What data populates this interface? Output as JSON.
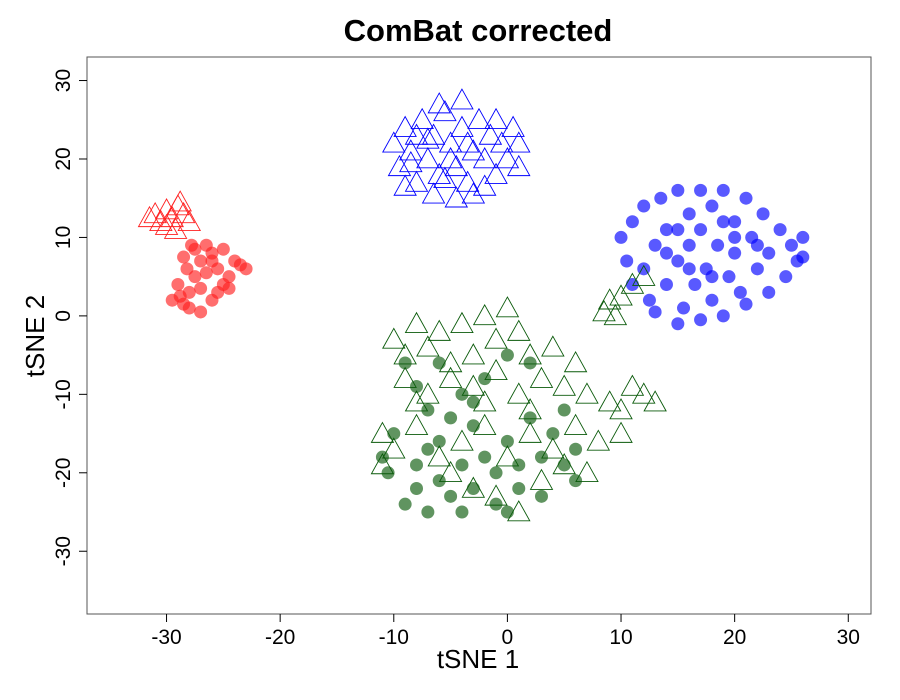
{
  "chart_data": {
    "type": "scatter",
    "title": "ComBat corrected",
    "xlabel": "tSNE 1",
    "ylabel": "tSNE 2",
    "xlim": [
      -37,
      32
    ],
    "ylim": [
      -38,
      33
    ],
    "xticks": [
      -30,
      -20,
      -10,
      0,
      10,
      20,
      30
    ],
    "yticks": [
      -30,
      -20,
      -10,
      0,
      10,
      20,
      30
    ],
    "grid": false,
    "legend": "none",
    "series": [
      {
        "color": "#ff2020",
        "marker": "circle",
        "points": [
          [
            -28.5,
            1.5
          ],
          [
            -28,
            3
          ],
          [
            -27.5,
            5
          ],
          [
            -27,
            7
          ],
          [
            -26.5,
            9
          ],
          [
            -26,
            8
          ],
          [
            -25.5,
            6
          ],
          [
            -25,
            4
          ],
          [
            -24.5,
            5
          ],
          [
            -24,
            7
          ],
          [
            -23.5,
            6.5
          ],
          [
            -23,
            6
          ],
          [
            -29,
            4
          ],
          [
            -28.8,
            2.5
          ],
          [
            -28,
            1
          ],
          [
            -27,
            0.5
          ],
          [
            -26,
            2
          ],
          [
            -25.5,
            3
          ],
          [
            -27.5,
            8.5
          ],
          [
            -26.5,
            5.5
          ],
          [
            -29.5,
            2
          ],
          [
            -28.2,
            6
          ],
          [
            -27.8,
            9
          ],
          [
            -25,
            8.5
          ],
          [
            -24.5,
            3.5
          ],
          [
            -26,
            7
          ],
          [
            -27,
            3.5
          ],
          [
            -28.5,
            7.5
          ]
        ]
      },
      {
        "color": "#ff2020",
        "marker": "triangle",
        "points": [
          [
            -31,
            13
          ],
          [
            -30.5,
            12
          ],
          [
            -30,
            13.5
          ],
          [
            -29.5,
            12.5
          ],
          [
            -29,
            14
          ],
          [
            -28.5,
            13
          ],
          [
            -28,
            12
          ],
          [
            -30,
            11.5
          ],
          [
            -29.2,
            11
          ],
          [
            -28.8,
            14.5
          ],
          [
            -31.5,
            12.5
          ]
        ]
      },
      {
        "color": "#0000ff",
        "marker": "triangle",
        "points": [
          [
            -10,
            22
          ],
          [
            -9.5,
            19
          ],
          [
            -9,
            24
          ],
          [
            -8.5,
            21
          ],
          [
            -8,
            17
          ],
          [
            -7.5,
            25
          ],
          [
            -7,
            20
          ],
          [
            -6.5,
            23
          ],
          [
            -6,
            18
          ],
          [
            -5.5,
            26
          ],
          [
            -5,
            22
          ],
          [
            -4.5,
            19
          ],
          [
            -4,
            24
          ],
          [
            -3.5,
            17
          ],
          [
            -3,
            21
          ],
          [
            -2.5,
            25
          ],
          [
            -2,
            20
          ],
          [
            -1.5,
            23
          ],
          [
            -1,
            18
          ],
          [
            -0.5,
            22
          ],
          [
            0,
            20
          ],
          [
            1,
            22
          ],
          [
            1,
            19
          ],
          [
            -6,
            27
          ],
          [
            -4,
            27.5
          ],
          [
            -3,
            15.5
          ],
          [
            -6.5,
            15.5
          ],
          [
            -9,
            16.5
          ],
          [
            -8,
            23
          ],
          [
            -2,
            16.5
          ],
          [
            0.5,
            24
          ],
          [
            -5,
            20
          ],
          [
            -7,
            22.5
          ],
          [
            -3.5,
            22
          ],
          [
            -5.5,
            17.5
          ],
          [
            -1,
            25
          ],
          [
            -8.5,
            19.5
          ],
          [
            -4.5,
            15
          ]
        ]
      },
      {
        "color": "#0000ff",
        "marker": "circle",
        "points": [
          [
            10,
            10
          ],
          [
            10.5,
            7
          ],
          [
            11,
            4
          ],
          [
            11,
            12
          ],
          [
            12,
            14
          ],
          [
            12,
            6
          ],
          [
            12.5,
            2
          ],
          [
            13,
            9
          ],
          [
            13.5,
            15
          ],
          [
            14,
            4
          ],
          [
            14,
            11
          ],
          [
            15,
            16
          ],
          [
            15,
            7
          ],
          [
            15.5,
            1
          ],
          [
            16,
            13
          ],
          [
            16,
            9
          ],
          [
            16.5,
            4
          ],
          [
            17,
            16
          ],
          [
            17,
            11
          ],
          [
            17.5,
            6
          ],
          [
            18,
            2
          ],
          [
            18,
            14
          ],
          [
            18.5,
            9
          ],
          [
            19,
            16
          ],
          [
            19.5,
            5
          ],
          [
            20,
            12
          ],
          [
            20,
            8
          ],
          [
            20.5,
            3
          ],
          [
            21,
            15
          ],
          [
            21.5,
            10
          ],
          [
            22,
            6
          ],
          [
            22.5,
            13
          ],
          [
            23,
            8
          ],
          [
            23,
            3
          ],
          [
            24,
            11
          ],
          [
            24.5,
            5
          ],
          [
            25,
            9
          ],
          [
            25.5,
            7
          ],
          [
            26,
            10
          ],
          [
            26,
            7.5
          ],
          [
            17,
            -0.5
          ],
          [
            15,
            -1
          ],
          [
            13,
            0.5
          ],
          [
            19,
            0
          ],
          [
            21,
            1.5
          ],
          [
            14,
            8
          ],
          [
            18,
            5
          ],
          [
            20,
            10
          ],
          [
            16,
            6
          ],
          [
            22,
            9
          ],
          [
            19,
            12
          ],
          [
            15,
            11
          ]
        ]
      },
      {
        "color": "#0a5a0a",
        "marker": "triangle",
        "points": [
          [
            9,
            2
          ],
          [
            9.5,
            0
          ],
          [
            10,
            2.5
          ],
          [
            11,
            4
          ],
          [
            12,
            5
          ],
          [
            8.5,
            0.5
          ],
          [
            -10,
            -3
          ],
          [
            -9,
            -5
          ],
          [
            -8,
            -1
          ],
          [
            -7,
            -4
          ],
          [
            -6,
            -2
          ],
          [
            -5,
            -6
          ],
          [
            -4,
            -1
          ],
          [
            -3,
            -5
          ],
          [
            -2,
            0
          ],
          [
            -1,
            -3
          ],
          [
            0,
            1
          ],
          [
            1,
            -2
          ],
          [
            2,
            -5
          ],
          [
            -9,
            -8
          ],
          [
            -7,
            -10
          ],
          [
            -5,
            -8
          ],
          [
            -3,
            -9
          ],
          [
            -1,
            -7
          ],
          [
            1,
            -10
          ],
          [
            3,
            -8
          ],
          [
            5,
            -9
          ],
          [
            7,
            -10
          ],
          [
            9,
            -11
          ],
          [
            11,
            -9
          ],
          [
            12,
            -10
          ],
          [
            13,
            -11
          ],
          [
            -11,
            -15
          ],
          [
            -10,
            -17
          ],
          [
            -8,
            -14
          ],
          [
            -6,
            -18
          ],
          [
            -4,
            -16
          ],
          [
            -2,
            -14
          ],
          [
            0,
            -18
          ],
          [
            2,
            -15
          ],
          [
            4,
            -17
          ],
          [
            6,
            -14
          ],
          [
            8,
            -16
          ],
          [
            10,
            -15
          ],
          [
            -3,
            -22
          ],
          [
            -1,
            -23
          ],
          [
            1,
            -25
          ],
          [
            3,
            -21
          ],
          [
            5,
            -19
          ],
          [
            7,
            -20
          ],
          [
            -5,
            -20
          ],
          [
            -11,
            -19
          ],
          [
            2,
            -12
          ],
          [
            -2,
            -11
          ],
          [
            6,
            -6
          ],
          [
            4,
            -4
          ],
          [
            -8,
            -11
          ],
          [
            10,
            -12
          ]
        ]
      },
      {
        "color": "#0a5a0a",
        "marker": "circle",
        "points": [
          [
            -11,
            -18
          ],
          [
            -10.5,
            -20
          ],
          [
            -10,
            -15
          ],
          [
            -9,
            -24
          ],
          [
            -8,
            -22
          ],
          [
            -8,
            -19
          ],
          [
            -7,
            -25
          ],
          [
            -6,
            -21
          ],
          [
            -6,
            -16
          ],
          [
            -5,
            -23
          ],
          [
            -4,
            -19
          ],
          [
            -4,
            -25
          ],
          [
            -3,
            -14
          ],
          [
            -3,
            -22
          ],
          [
            -2,
            -18
          ],
          [
            -1,
            -24
          ],
          [
            -1,
            -20
          ],
          [
            0,
            -25
          ],
          [
            0,
            -16
          ],
          [
            1,
            -22
          ],
          [
            1,
            -19
          ],
          [
            2,
            -13
          ],
          [
            3,
            -18
          ],
          [
            3,
            -23
          ],
          [
            4,
            -15
          ],
          [
            5,
            -12
          ],
          [
            5,
            -19
          ],
          [
            6,
            -17
          ],
          [
            6,
            -21
          ],
          [
            -7,
            -12
          ],
          [
            -9,
            -6
          ],
          [
            -8,
            -9
          ],
          [
            -6,
            -6
          ],
          [
            -4,
            -10
          ],
          [
            -2,
            -8
          ],
          [
            0,
            -5
          ],
          [
            2,
            -6
          ],
          [
            -5,
            -13
          ],
          [
            -3,
            -11
          ],
          [
            -7,
            -17
          ]
        ]
      }
    ]
  }
}
